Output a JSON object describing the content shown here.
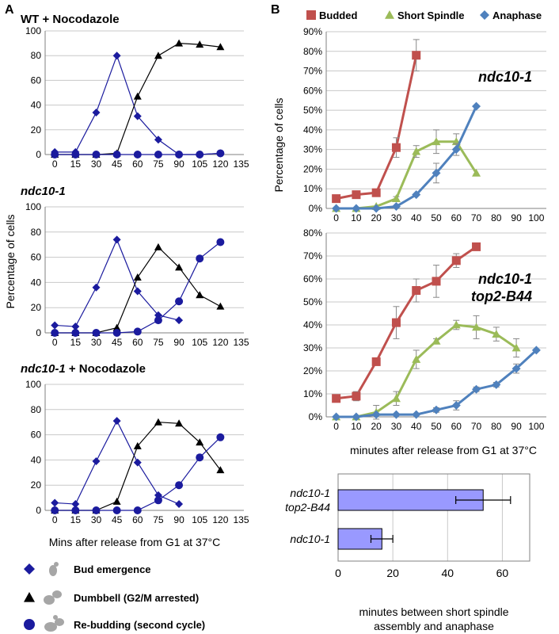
{
  "panel_labels": {
    "a": "A",
    "b": "B"
  },
  "left_ylabel": "Percentage of cells",
  "left_xlabel": "Mins after release from G1 at 37°C",
  "right_ylabel": "Percentage of cells",
  "right_xlabel": "minutes after release from G1 at 37°C",
  "bar_xlabel_line1": "minutes between short spindle",
  "bar_xlabel_line2": "assembly and anaphase",
  "legend_a": [
    {
      "name": "Bud emergence",
      "marker": "diamond",
      "color": "#1b1b9e"
    },
    {
      "name": "Dumbbell (G2/M arrested)",
      "marker": "triangle",
      "color": "#000000"
    },
    {
      "name": "Re-budding (second cycle)",
      "marker": "circle",
      "color": "#1b1b9e"
    }
  ],
  "legend_b": [
    {
      "name": "Budded",
      "marker": "square",
      "color": "#c0504d"
    },
    {
      "name": "Short Spindle",
      "marker": "triangle",
      "color": "#9bbb59"
    },
    {
      "name": "Anaphase",
      "marker": "diamond",
      "color": "#4f81bd"
    }
  ],
  "chart_data": [
    {
      "type": "line",
      "title_parts": [
        {
          "text": "WT",
          "italic": false
        },
        {
          "text": " + Nocodazole",
          "italic": false
        }
      ],
      "ylim": [
        0,
        100
      ],
      "yticks": [
        0,
        20,
        40,
        60,
        80,
        100
      ],
      "xticks": [
        0,
        15,
        30,
        45,
        60,
        75,
        90,
        105,
        120,
        135
      ],
      "series": [
        {
          "name": "Bud emergence",
          "marker": "diamond",
          "color": "#1b1b9e",
          "x": [
            0,
            15,
            30,
            45,
            60,
            75,
            90,
            105,
            120
          ],
          "y": [
            2,
            2,
            34,
            80,
            31,
            12,
            0,
            0,
            1
          ]
        },
        {
          "name": "Dumbbell (G2/M arrested)",
          "marker": "triangle",
          "color": "#000000",
          "x": [
            0,
            15,
            30,
            45,
            60,
            75,
            90,
            105,
            120
          ],
          "y": [
            0,
            0,
            0,
            1,
            47,
            80,
            90,
            89,
            87
          ]
        },
        {
          "name": "Re-budding (second cycle)",
          "marker": "circle",
          "color": "#1b1b9e",
          "x": [
            0,
            15,
            30,
            45,
            60,
            75,
            90,
            105,
            120
          ],
          "y": [
            0,
            0,
            0,
            0,
            0,
            0,
            0,
            0,
            1
          ]
        }
      ]
    },
    {
      "type": "line",
      "title_parts": [
        {
          "text": "ndc10-1",
          "italic": true
        }
      ],
      "ylim": [
        0,
        100
      ],
      "yticks": [
        0,
        20,
        40,
        60,
        80,
        100
      ],
      "xticks": [
        0,
        15,
        30,
        45,
        60,
        75,
        90,
        105,
        120,
        135
      ],
      "series": [
        {
          "name": "Bud emergence",
          "marker": "diamond",
          "color": "#1b1b9e",
          "x": [
            0,
            15,
            30,
            45,
            60,
            75,
            90
          ],
          "y": [
            6,
            5,
            36,
            74,
            33,
            14,
            10
          ]
        },
        {
          "name": "Dumbbell (G2/M arrested)",
          "marker": "triangle",
          "color": "#000000",
          "x": [
            0,
            15,
            30,
            45,
            60,
            75,
            90,
            105,
            120
          ],
          "y": [
            0,
            0,
            0,
            4,
            44,
            68,
            52,
            30,
            21
          ]
        },
        {
          "name": "Re-budding (second cycle)",
          "marker": "circle",
          "color": "#1b1b9e",
          "x": [
            0,
            15,
            30,
            45,
            60,
            75,
            90,
            105,
            120
          ],
          "y": [
            0,
            0,
            0,
            0,
            1,
            10,
            25,
            59,
            72
          ]
        }
      ]
    },
    {
      "type": "line",
      "title_parts": [
        {
          "text": "ndc10-1",
          "italic": true
        },
        {
          "text": " + Nocodazole",
          "italic": false
        }
      ],
      "ylim": [
        0,
        100
      ],
      "yticks": [
        0,
        20,
        40,
        60,
        80,
        100
      ],
      "xticks": [
        0,
        15,
        30,
        45,
        60,
        75,
        90,
        105,
        120,
        135
      ],
      "series": [
        {
          "name": "Bud emergence",
          "marker": "diamond",
          "color": "#1b1b9e",
          "x": [
            0,
            15,
            30,
            45,
            60,
            75,
            90
          ],
          "y": [
            6,
            5,
            39,
            71,
            38,
            12,
            5
          ]
        },
        {
          "name": "Dumbbell (G2/M arrested)",
          "marker": "triangle",
          "color": "#000000",
          "x": [
            0,
            15,
            30,
            45,
            60,
            75,
            90,
            105,
            120
          ],
          "y": [
            0,
            0,
            0,
            7,
            51,
            70,
            69,
            54,
            32
          ]
        },
        {
          "name": "Re-budding (second cycle)",
          "marker": "circle",
          "color": "#1b1b9e",
          "x": [
            0,
            15,
            30,
            45,
            60,
            75,
            90,
            105,
            120
          ],
          "y": [
            0,
            0,
            0,
            0,
            0,
            8,
            20,
            42,
            58
          ]
        }
      ]
    },
    {
      "type": "line",
      "title_parts": [
        {
          "text": "ndc10-1",
          "italic": true
        }
      ],
      "ylim": [
        0,
        90
      ],
      "yticks": [
        0,
        10,
        20,
        30,
        40,
        50,
        60,
        70,
        80,
        90
      ],
      "ytick_format": "percent",
      "xticks": [
        0,
        10,
        20,
        30,
        40,
        50,
        60,
        70,
        80,
        90,
        100
      ],
      "series": [
        {
          "name": "Budded",
          "marker": "square",
          "color": "#c0504d",
          "x": [
            0,
            10,
            20,
            30,
            40
          ],
          "y": [
            5,
            7,
            8,
            31,
            78
          ],
          "err": [
            0,
            0,
            0,
            5,
            8
          ]
        },
        {
          "name": "Short Spindle",
          "marker": "triangle",
          "color": "#9bbb59",
          "x": [
            0,
            10,
            20,
            30,
            40,
            50,
            60,
            70
          ],
          "y": [
            0,
            0,
            1,
            5,
            29,
            34,
            34,
            18
          ],
          "err": [
            0,
            0,
            0,
            1,
            3,
            6,
            4,
            0
          ]
        },
        {
          "name": "Anaphase",
          "marker": "diamond",
          "color": "#4f81bd",
          "x": [
            0,
            10,
            20,
            30,
            40,
            50,
            60,
            70
          ],
          "y": [
            0,
            0,
            0,
            1,
            7,
            18,
            30,
            52
          ],
          "err": [
            0,
            0,
            0,
            0,
            0,
            5,
            3,
            0
          ]
        }
      ]
    },
    {
      "type": "line",
      "title_parts": [
        {
          "text": "ndc10-1",
          "italic": true
        },
        {
          "text": "top2-B44",
          "italic": true
        }
      ],
      "ylim": [
        0,
        80
      ],
      "yticks": [
        0,
        10,
        20,
        30,
        40,
        50,
        60,
        70,
        80
      ],
      "ytick_format": "percent",
      "xticks": [
        0,
        10,
        20,
        30,
        40,
        50,
        60,
        70,
        80,
        90,
        100
      ],
      "series": [
        {
          "name": "Budded",
          "marker": "square",
          "color": "#c0504d",
          "x": [
            0,
            10,
            20,
            30,
            40,
            50,
            60,
            70
          ],
          "y": [
            8,
            9,
            24,
            41,
            55,
            59,
            68,
            74
          ],
          "err": [
            0,
            2,
            1,
            7,
            5,
            7,
            3,
            0
          ]
        },
        {
          "name": "Short Spindle",
          "marker": "triangle",
          "color": "#9bbb59",
          "x": [
            0,
            10,
            20,
            30,
            40,
            50,
            60,
            70,
            80,
            90
          ],
          "y": [
            0,
            0,
            2,
            8,
            25,
            33,
            40,
            39,
            36,
            30
          ],
          "err": [
            0,
            0,
            3,
            3,
            4,
            1,
            2,
            5,
            3,
            4
          ]
        },
        {
          "name": "Anaphase",
          "marker": "diamond",
          "color": "#4f81bd",
          "x": [
            0,
            10,
            20,
            30,
            40,
            50,
            60,
            70,
            80,
            90,
            100
          ],
          "y": [
            0,
            0,
            1,
            1,
            1,
            3,
            5,
            12,
            14,
            21,
            29
          ],
          "err": [
            0,
            0,
            0,
            0,
            0,
            1,
            2,
            1,
            1,
            2,
            0
          ]
        }
      ]
    },
    {
      "type": "bar",
      "orientation": "horizontal",
      "categories": [
        {
          "lines": [
            "ndc10-1",
            "top2-B44"
          ],
          "italic": true
        },
        {
          "lines": [
            "ndc10-1"
          ],
          "italic": true
        }
      ],
      "values": [
        53,
        16
      ],
      "err": [
        10,
        4
      ],
      "color": "#9999ff",
      "xlim": [
        0,
        70
      ],
      "xticks": [
        0,
        20,
        40,
        60
      ]
    }
  ]
}
